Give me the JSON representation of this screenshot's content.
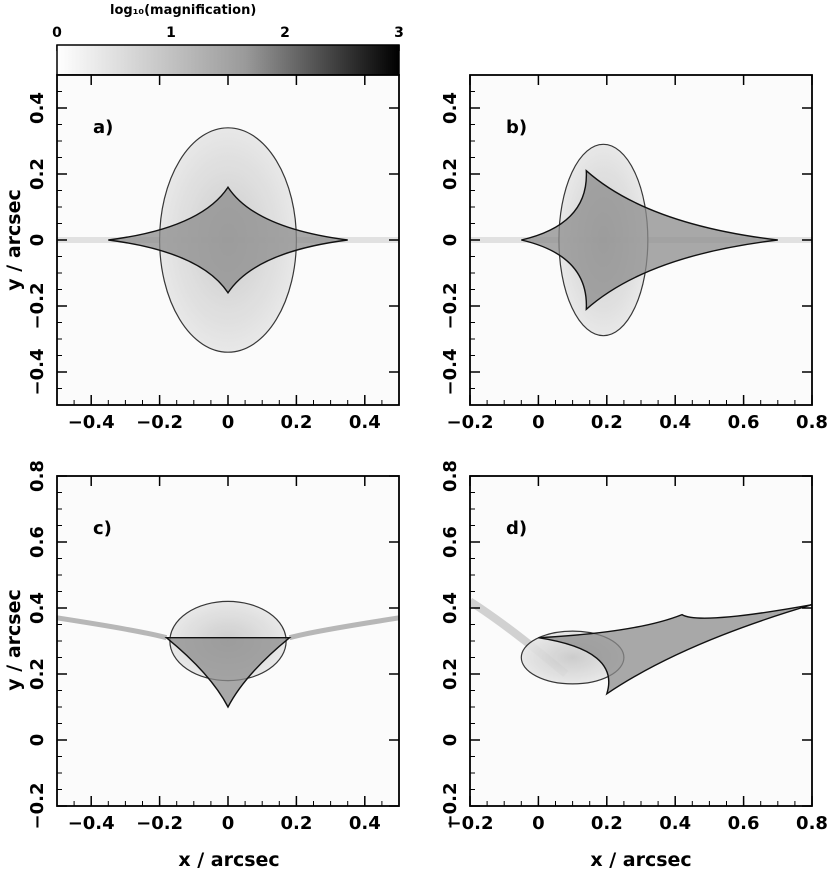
{
  "colorbar": {
    "label": "log₁₀(magnification)",
    "ticks": [
      "0",
      "1",
      "2",
      "3"
    ],
    "range": [
      0,
      3
    ],
    "color_low": "#ffffff",
    "color_high": "#000000"
  },
  "xlabel": "x / arcsec",
  "ylabel": "y / arcsec",
  "chart_data": [
    {
      "type": "heatmap",
      "panel_label": "a)",
      "xlim": [
        -0.5,
        0.5
      ],
      "ylim": [
        -0.5,
        0.5
      ],
      "xticks": [
        -0.4,
        -0.2,
        0,
        0.2,
        0.4
      ],
      "yticks": [
        -0.4,
        -0.2,
        0,
        0.2,
        0.4
      ],
      "xtick_labels": [
        "−0.4",
        "−0.2",
        "0",
        "0.2",
        "0.4"
      ],
      "ytick_labels": [
        "−0.4",
        "−0.2",
        "0",
        "0.2",
        "0.4"
      ],
      "caustics": {
        "oval": {
          "cx": 0,
          "cy": 0,
          "rx": 0.2,
          "ry": 0.34
        },
        "astroid": [
          [
            -0.35,
            0
          ],
          [
            0,
            0.16
          ],
          [
            0.35,
            0
          ],
          [
            0,
            -0.16
          ]
        ]
      }
    },
    {
      "type": "heatmap",
      "panel_label": "b)",
      "xlim": [
        -0.2,
        0.8
      ],
      "ylim": [
        -0.5,
        0.5
      ],
      "xticks": [
        -0.2,
        0,
        0.2,
        0.4,
        0.6,
        0.8
      ],
      "yticks": [
        -0.4,
        -0.2,
        0,
        0.2,
        0.4
      ],
      "xtick_labels": [
        "−0.2",
        "0",
        "0.2",
        "0.4",
        "0.6",
        "0.8"
      ],
      "ytick_labels": [
        "−0.4",
        "−0.2",
        "0",
        "0.2",
        "0.4"
      ],
      "caustics": {
        "oval": {
          "cx": 0.19,
          "cy": 0.0,
          "rx": 0.13,
          "ry": 0.29
        },
        "astroid": [
          [
            -0.05,
            0
          ],
          [
            0.14,
            0.21
          ],
          [
            0.7,
            0
          ],
          [
            0.14,
            -0.21
          ]
        ]
      }
    },
    {
      "type": "heatmap",
      "panel_label": "c)",
      "xlim": [
        -0.5,
        0.5
      ],
      "ylim": [
        -0.2,
        0.8
      ],
      "xticks": [
        -0.4,
        -0.2,
        0,
        0.2,
        0.4
      ],
      "yticks": [
        -0.2,
        0,
        0.2,
        0.4,
        0.6,
        0.8
      ],
      "xtick_labels": [
        "−0.4",
        "−0.2",
        "0",
        "0.2",
        "0.4"
      ],
      "ytick_labels": [
        "−0.2",
        "0",
        "0.2",
        "0.4",
        "0.6",
        "0.8"
      ],
      "caustics": {
        "oval": {
          "cx": 0,
          "cy": 0.3,
          "rx": 0.17,
          "ry": 0.12
        },
        "astroid": [
          [
            -0.5,
            0.37
          ],
          [
            -0.18,
            0.31
          ],
          [
            0,
            0.1
          ],
          [
            0.18,
            0.31
          ],
          [
            0.5,
            0.37
          ]
        ]
      }
    },
    {
      "type": "heatmap",
      "panel_label": "d)",
      "xlim": [
        -0.2,
        0.8
      ],
      "ylim": [
        -0.2,
        0.8
      ],
      "xticks": [
        -0.2,
        0,
        0.2,
        0.4,
        0.6,
        0.8
      ],
      "yticks": [
        -0.2,
        0,
        0.2,
        0.4,
        0.6,
        0.8
      ],
      "xtick_labels": [
        "−0.2",
        "0",
        "0.2",
        "0.4",
        "0.6",
        "0.8"
      ],
      "ytick_labels": [
        "−0.2",
        "0",
        "0.2",
        "0.4",
        "0.6",
        "0.8"
      ],
      "caustics": {
        "oval": {
          "cx": 0.1,
          "cy": 0.25,
          "rx": 0.15,
          "ry": 0.08
        },
        "astroid": [
          [
            0.0,
            0.31
          ],
          [
            0.2,
            0.14
          ],
          [
            0.8,
            0.41
          ],
          [
            0.42,
            0.38
          ]
        ]
      }
    }
  ]
}
